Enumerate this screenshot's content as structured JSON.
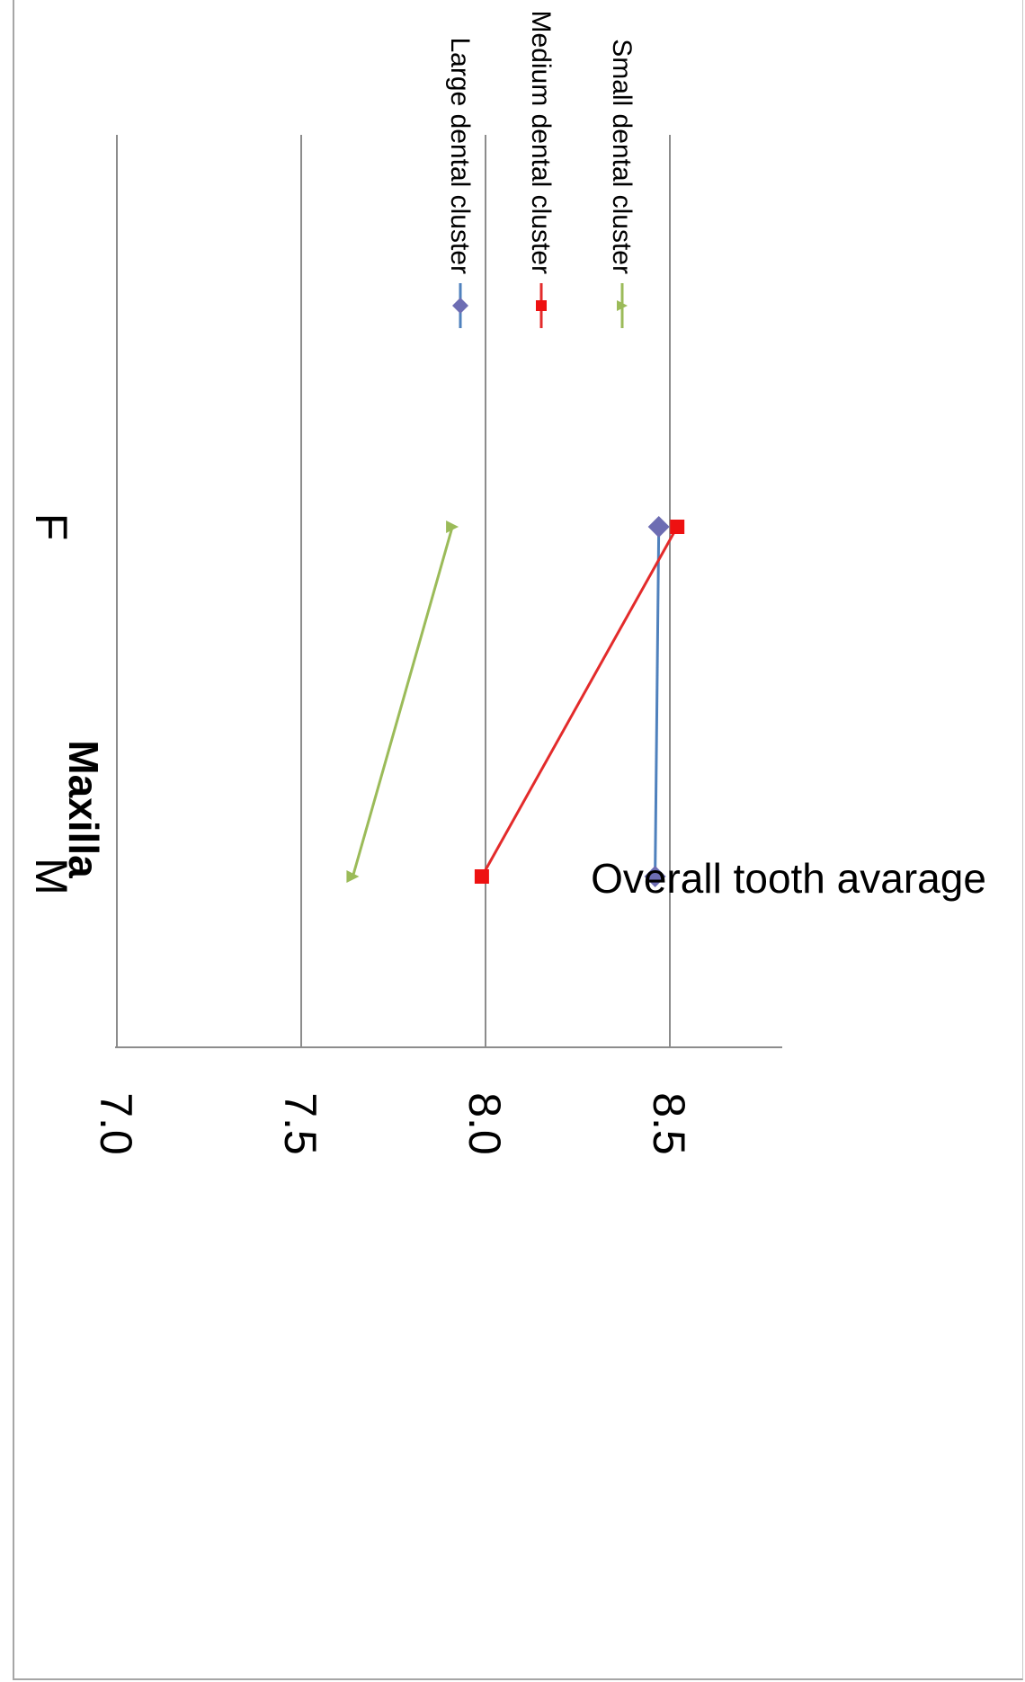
{
  "chart_data": {
    "type": "line",
    "title": "Maxilla",
    "xlabel": "",
    "ylabel": "Overall tooth avarage",
    "categories": [
      "M",
      "F"
    ],
    "ylim": [
      7.0,
      8.8
    ],
    "yticks": [
      "8.5",
      "8.0",
      "7.5",
      "7.0"
    ],
    "grid": true,
    "legend_position": "right",
    "series": [
      {
        "name": "Large dental cluster",
        "values": [
          8.46,
          8.47
        ],
        "color": "#4f81bd",
        "marker_color": "#6d6db3",
        "marker": "diamond"
      },
      {
        "name": "Medium dental cluster",
        "values": [
          7.99,
          8.52
        ],
        "color": "#e32b2b",
        "marker_color": "#ee1111",
        "marker": "square"
      },
      {
        "name": "Small dental cluster",
        "values": [
          7.64,
          7.91
        ],
        "color": "#9bbb59",
        "marker_color": "#9bbb59",
        "marker": "triangle"
      }
    ]
  }
}
